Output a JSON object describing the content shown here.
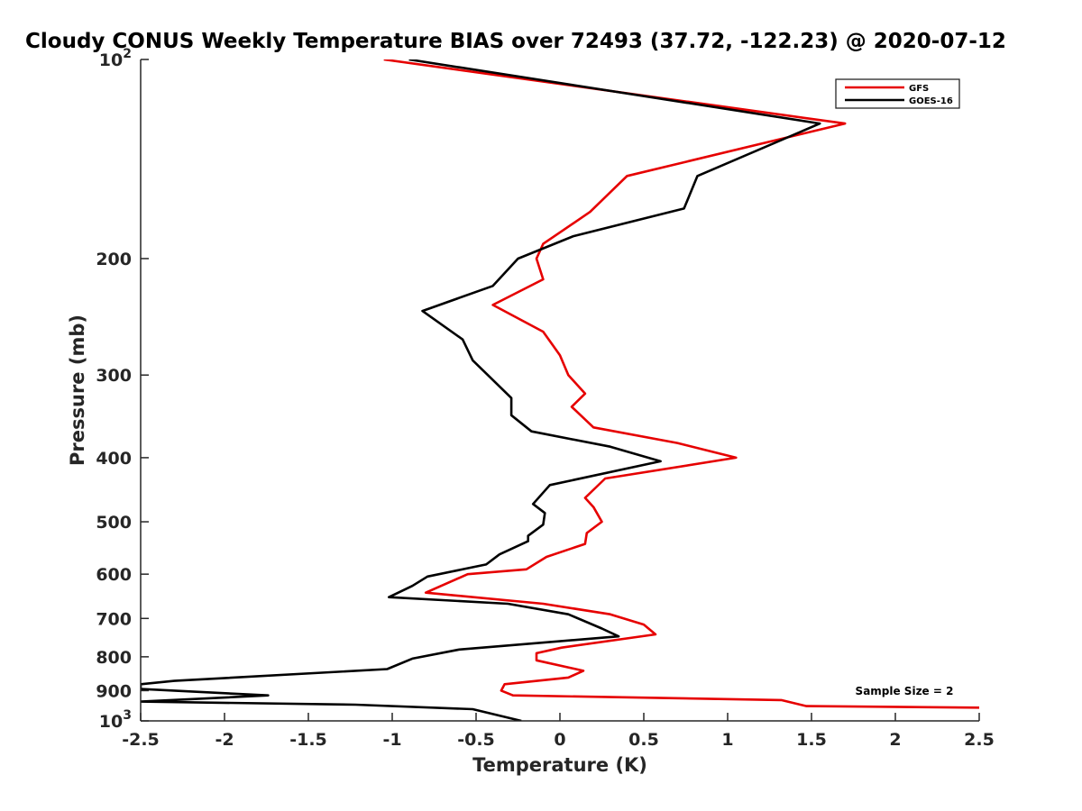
{
  "chart_data": {
    "type": "line",
    "title": "Cloudy CONUS Weekly Temperature BIAS over 72493 (37.72, -122.23) @ 2020-07-12",
    "xlabel": "Temperature (K)",
    "ylabel": "Pressure (mb)",
    "xlim": [
      -2.5,
      2.5
    ],
    "ylim": [
      100,
      1000
    ],
    "y_scale": "log",
    "y_reversed": true,
    "grid": false,
    "legend_position": "top-right",
    "x_ticks": [
      "-2.5",
      "-2",
      "-1.5",
      "-1",
      "-0.5",
      "0",
      "0.5",
      "1",
      "1.5",
      "2",
      "2.5"
    ],
    "x_tick_values": [
      -2.5,
      -2,
      -1.5,
      -1,
      -0.5,
      0,
      0.5,
      1,
      1.5,
      2,
      2.5
    ],
    "y_ticks": [
      {
        "value": 100,
        "base": "10",
        "exp": "2"
      },
      {
        "value": 200,
        "label": "200"
      },
      {
        "value": 300,
        "label": "300"
      },
      {
        "value": 400,
        "label": "400"
      },
      {
        "value": 500,
        "label": "500"
      },
      {
        "value": 600,
        "label": "600"
      },
      {
        "value": 700,
        "label": "700"
      },
      {
        "value": 800,
        "label": "800"
      },
      {
        "value": 900,
        "label": "900"
      },
      {
        "value": 1000,
        "base": "10",
        "exp": "3"
      }
    ],
    "annotation": "Sample Size = 2",
    "series": [
      {
        "name": "GFS",
        "color": "#e60000",
        "points": [
          [
            -1.05,
            100
          ],
          [
            1.7,
            125
          ],
          [
            0.4,
            150
          ],
          [
            0.18,
            170
          ],
          [
            -0.1,
            190
          ],
          [
            -0.14,
            200
          ],
          [
            -0.1,
            215
          ],
          [
            -0.4,
            235
          ],
          [
            -0.1,
            258
          ],
          [
            0.0,
            280
          ],
          [
            0.05,
            300
          ],
          [
            0.15,
            320
          ],
          [
            0.07,
            335
          ],
          [
            0.2,
            360
          ],
          [
            0.7,
            380
          ],
          [
            1.05,
            400
          ],
          [
            0.27,
            430
          ],
          [
            0.15,
            460
          ],
          [
            0.2,
            475
          ],
          [
            0.25,
            500
          ],
          [
            0.16,
            520
          ],
          [
            0.15,
            540
          ],
          [
            -0.08,
            565
          ],
          [
            -0.2,
            590
          ],
          [
            -0.55,
            600
          ],
          [
            -0.8,
            640
          ],
          [
            -0.1,
            665
          ],
          [
            0.3,
            690
          ],
          [
            0.5,
            715
          ],
          [
            0.57,
            740
          ],
          [
            0.01,
            775
          ],
          [
            -0.14,
            790
          ],
          [
            -0.14,
            810
          ],
          [
            0.14,
            840
          ],
          [
            0.05,
            860
          ],
          [
            -0.33,
            880
          ],
          [
            -0.35,
            900
          ],
          [
            -0.28,
            915
          ],
          [
            1.32,
            930
          ],
          [
            1.47,
            950
          ],
          [
            2.5,
            955
          ]
        ]
      },
      {
        "name": "GOES-16",
        "color": "#000000",
        "points": [
          [
            -0.9,
            100
          ],
          [
            1.55,
            125
          ],
          [
            0.82,
            150
          ],
          [
            0.74,
            168
          ],
          [
            0.08,
            185
          ],
          [
            -0.25,
            200
          ],
          [
            -0.4,
            220
          ],
          [
            -0.82,
            240
          ],
          [
            -0.58,
            265
          ],
          [
            -0.52,
            285
          ],
          [
            -0.43,
            300
          ],
          [
            -0.29,
            325
          ],
          [
            -0.29,
            345
          ],
          [
            -0.17,
            365
          ],
          [
            0.3,
            385
          ],
          [
            0.6,
            405
          ],
          [
            -0.06,
            440
          ],
          [
            -0.16,
            470
          ],
          [
            -0.09,
            485
          ],
          [
            -0.1,
            505
          ],
          [
            -0.19,
            525
          ],
          [
            -0.19,
            535
          ],
          [
            -0.36,
            560
          ],
          [
            -0.44,
            580
          ],
          [
            -0.79,
            605
          ],
          [
            -0.88,
            625
          ],
          [
            -1.02,
            650
          ],
          [
            -0.31,
            665
          ],
          [
            0.05,
            690
          ],
          [
            0.25,
            725
          ],
          [
            0.35,
            745
          ],
          [
            -0.6,
            780
          ],
          [
            -0.88,
            805
          ],
          [
            -1.03,
            835
          ],
          [
            -2.3,
            870
          ],
          [
            -2.5,
            880
          ],
          [
            -2.5,
            895
          ],
          [
            -1.74,
            915
          ],
          [
            -2.5,
            935
          ],
          [
            -1.22,
            945
          ],
          [
            -0.52,
            960
          ],
          [
            -0.23,
            1000
          ]
        ]
      }
    ]
  }
}
